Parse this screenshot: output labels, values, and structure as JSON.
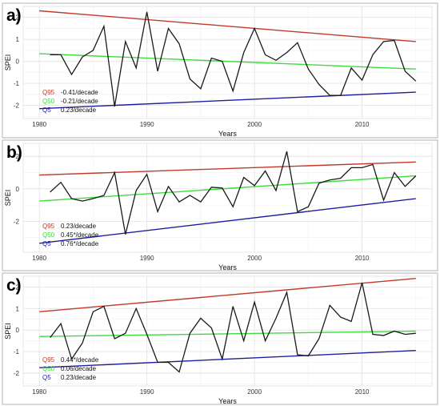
{
  "chart_data": [
    {
      "type": "line",
      "panel_label": "a)",
      "xlabel": "Years",
      "ylabel": "SPEI",
      "xlim": [
        1978.5,
        2016.5
      ],
      "ylim": [
        -2.6,
        2.5
      ],
      "x_ticks": [
        1980,
        1990,
        2000,
        2010
      ],
      "y_ticks": [
        -2,
        -1,
        0,
        1,
        2
      ],
      "grid": true,
      "series": [
        {
          "x": [
            1981,
            1982,
            1983,
            1984,
            1985,
            1986,
            1987,
            1988,
            1989,
            1990,
            1991,
            1992,
            1993,
            1994,
            1995,
            1996,
            1997,
            1998,
            1999,
            2000,
            2001,
            2002,
            2003,
            2004,
            2005,
            2006,
            2007,
            2008,
            2009,
            2010,
            2011,
            2012,
            2013,
            2014,
            2015
          ],
          "values": [
            0.3,
            0.3,
            -0.6,
            0.2,
            0.5,
            1.6,
            -2.05,
            0.9,
            -0.3,
            2.25,
            -0.45,
            1.5,
            0.8,
            -0.8,
            -1.25,
            0.15,
            0.0,
            -1.35,
            0.4,
            1.5,
            0.3,
            0.05,
            0.4,
            0.85,
            -0.35,
            -1.05,
            -1.55,
            -1.55,
            -0.3,
            -0.85,
            0.3,
            0.9,
            0.95,
            -0.45,
            -0.9
          ]
        }
      ],
      "trends": [
        {
          "name": "Q95",
          "label": "-0.41/decade",
          "start": [
            1980,
            2.3
          ],
          "end": [
            2015,
            0.9
          ]
        },
        {
          "name": "Q50",
          "label": "-0.21/decade",
          "start": [
            1980,
            0.35
          ],
          "end": [
            2015,
            -0.35
          ]
        },
        {
          "name": "Q5",
          "label": "0.23/decade",
          "start": [
            1980,
            -2.15
          ],
          "end": [
            2015,
            -1.4
          ]
        }
      ]
    },
    {
      "type": "line",
      "panel_label": "b)",
      "xlabel": "Years",
      "ylabel": "SPEI",
      "xlim": [
        1978.5,
        2016.5
      ],
      "ylim": [
        -3.9,
        2.8
      ],
      "x_ticks": [
        1980,
        1990,
        2000,
        2010
      ],
      "y_ticks": [
        -2,
        0,
        2
      ],
      "grid": true,
      "series": [
        {
          "x": [
            1981,
            1982,
            1983,
            1984,
            1985,
            1986,
            1987,
            1988,
            1989,
            1990,
            1991,
            1992,
            1993,
            1994,
            1995,
            1996,
            1997,
            1998,
            1999,
            2000,
            2001,
            2002,
            2003,
            2004,
            2005,
            2006,
            2007,
            2008,
            2009,
            2010,
            2011,
            2012,
            2013,
            2014,
            2015
          ],
          "values": [
            -0.2,
            0.4,
            -0.6,
            -0.75,
            -0.6,
            -0.4,
            1.0,
            -2.8,
            -0.1,
            0.9,
            -1.4,
            0.15,
            -0.8,
            -0.4,
            -0.8,
            0.1,
            0.05,
            -1.1,
            0.7,
            0.2,
            1.1,
            -0.1,
            2.3,
            -1.4,
            -1.1,
            0.35,
            0.55,
            0.65,
            1.3,
            1.3,
            1.5,
            -0.7,
            1.0,
            0.15,
            0.8
          ]
        }
      ],
      "trends": [
        {
          "name": "Q95",
          "label": "0.23/decade",
          "start": [
            1980,
            0.85
          ],
          "end": [
            2015,
            1.65
          ]
        },
        {
          "name": "Q50",
          "label": "0.45*/decade",
          "start": [
            1980,
            -0.75
          ],
          "end": [
            2015,
            0.8
          ]
        },
        {
          "name": "Q5",
          "label": "0.76*/decade",
          "start": [
            1980,
            -3.35
          ],
          "end": [
            2015,
            -0.6
          ]
        }
      ]
    },
    {
      "type": "line",
      "panel_label": "c)",
      "xlabel": "Years",
      "ylabel": "SPEI",
      "xlim": [
        1978.5,
        2016.5
      ],
      "ylim": [
        -2.6,
        2.5
      ],
      "x_ticks": [
        1980,
        1990,
        2000,
        2010
      ],
      "y_ticks": [
        -2,
        -1,
        0,
        1,
        2
      ],
      "grid": true,
      "series": [
        {
          "x": [
            1981,
            1982,
            1983,
            1984,
            1985,
            1986,
            1987,
            1988,
            1989,
            1990,
            1991,
            1992,
            1993,
            1994,
            1995,
            1996,
            1997,
            1998,
            1999,
            2000,
            2001,
            2002,
            2003,
            2004,
            2005,
            2006,
            2007,
            2008,
            2009,
            2010,
            2011,
            2012,
            2013,
            2014,
            2015
          ],
          "values": [
            -0.35,
            0.3,
            -1.35,
            -0.6,
            0.85,
            1.1,
            -0.4,
            -0.15,
            1.0,
            -0.2,
            -1.5,
            -1.5,
            -1.95,
            -0.15,
            0.55,
            0.1,
            -1.35,
            1.1,
            -0.5,
            1.3,
            -0.5,
            0.55,
            1.75,
            -1.15,
            -1.2,
            -0.4,
            1.15,
            0.6,
            0.4,
            2.2,
            -0.2,
            -0.25,
            -0.05,
            -0.2,
            -0.15
          ]
        }
      ],
      "trends": [
        {
          "name": "Q95",
          "label": "0.44*/decade",
          "start": [
            1980,
            0.85
          ],
          "end": [
            2015,
            2.4
          ]
        },
        {
          "name": "Q50",
          "label": "0.06/decade",
          "start": [
            1980,
            -0.3
          ],
          "end": [
            2015,
            -0.05
          ]
        },
        {
          "name": "Q5",
          "label": "0.23/decade",
          "start": [
            1980,
            -1.75
          ],
          "end": [
            2015,
            -0.95
          ]
        }
      ]
    }
  ],
  "colors": {
    "series": "#1a1a1a",
    "Q95": "#c0392b",
    "Q50": "#3ddc3d",
    "Q5": "#1f1f9e",
    "grid": "#e4e4e4",
    "panel_border": "#b3b3b3"
  }
}
